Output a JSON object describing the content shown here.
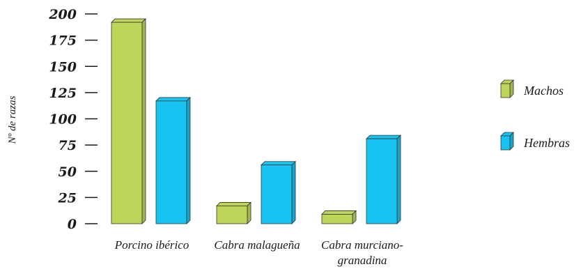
{
  "chart_data": {
    "type": "bar",
    "title": "",
    "xlabel": "",
    "ylabel": "Nº de razas",
    "ylim": [
      0,
      200
    ],
    "yticks": [
      0,
      25,
      50,
      75,
      100,
      125,
      150,
      175,
      200
    ],
    "categories": [
      [
        "Porcino ibérico"
      ],
      [
        "Cabra malagueña"
      ],
      [
        "Cabra murciano-",
        "granadina"
      ]
    ],
    "series": [
      {
        "name": "Machos",
        "values": [
          192,
          17,
          9
        ],
        "color": "#bdd65a"
      },
      {
        "name": "Hembras",
        "values": [
          117,
          56,
          81
        ],
        "color": "#19c3f1"
      }
    ],
    "legend_position": "right",
    "grid": false,
    "style": "3d"
  }
}
